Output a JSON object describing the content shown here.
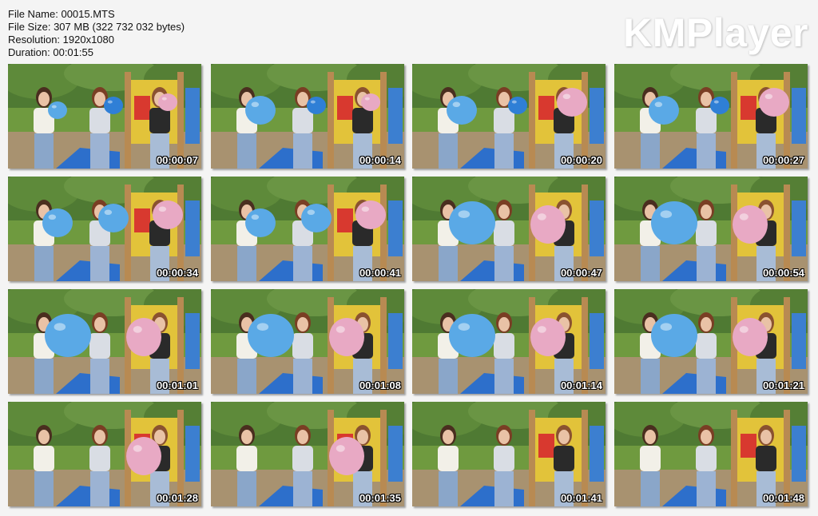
{
  "file_info": {
    "file_name": "File Name: 00015.MTS",
    "file_size": "File Size: 307 MB (322 732 032 bytes)",
    "resolution": "Resolution: 1920x1080",
    "duration": "Duration: 00:01:55"
  },
  "brand": "KMPlayer",
  "thumbnails": [
    {
      "timestamp": "00:00:07",
      "balloons": [
        "blue-small",
        "blue-small",
        "pink-small"
      ]
    },
    {
      "timestamp": "00:00:14",
      "balloons": [
        "blue",
        "blue-small",
        "pink-small"
      ]
    },
    {
      "timestamp": "00:00:20",
      "balloons": [
        "blue",
        "blue-small",
        "pink"
      ]
    },
    {
      "timestamp": "00:00:27",
      "balloons": [
        "blue",
        "blue-small",
        "pink"
      ]
    },
    {
      "timestamp": "00:00:34",
      "balloons": [
        "blue",
        "blue",
        "pink"
      ]
    },
    {
      "timestamp": "00:00:41",
      "balloons": [
        "blue",
        "blue",
        "pink"
      ]
    },
    {
      "timestamp": "00:00:47",
      "balloons": [
        "blue-large",
        "pink"
      ]
    },
    {
      "timestamp": "00:00:54",
      "balloons": [
        "blue-large",
        "pink"
      ]
    },
    {
      "timestamp": "00:01:01",
      "balloons": [
        "blue-large",
        "pink"
      ]
    },
    {
      "timestamp": "00:01:08",
      "balloons": [
        "blue-large",
        "pink"
      ]
    },
    {
      "timestamp": "00:01:14",
      "balloons": [
        "blue-large",
        "pink"
      ]
    },
    {
      "timestamp": "00:01:21",
      "balloons": [
        "blue-large",
        "pink"
      ]
    },
    {
      "timestamp": "00:01:28",
      "balloons": [
        "pink"
      ]
    },
    {
      "timestamp": "00:01:35",
      "balloons": [
        "pink"
      ]
    },
    {
      "timestamp": "00:01:41",
      "balloons": []
    },
    {
      "timestamp": "00:01:48",
      "balloons": []
    }
  ],
  "colors": {
    "background": "#f4f4f4",
    "balloon_blue": "#5aa9e6",
    "balloon_blue_dark": "#2f7fd6",
    "balloon_pink": "#e8a9c4",
    "grass": "#6f9a3f",
    "sky": "#e8eef0"
  }
}
